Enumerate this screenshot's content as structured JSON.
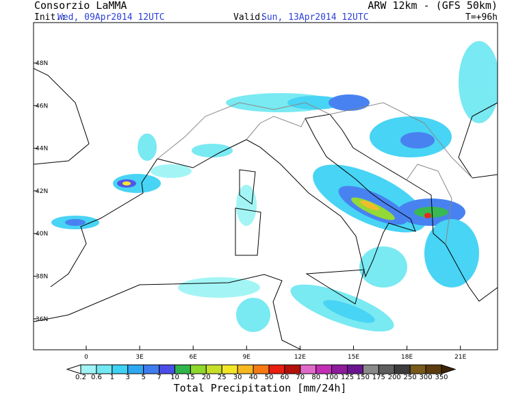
{
  "header": {
    "title": "Consorzio LaMMA",
    "model": "ARW 12km - (GFS 50km)",
    "init_label": "Init.:",
    "init_time": "Wed, 09Apr2014 12UTC",
    "valid_label": "Valid:",
    "valid_time": "Sun, 13Apr2014 12UTC",
    "lead_time": "T=+96h"
  },
  "map": {
    "lat_labels": [
      "48N",
      "46N",
      "44N",
      "42N",
      "40N",
      "38N",
      "36N"
    ],
    "lon_labels": [
      "0",
      "3E",
      "6E",
      "9E",
      "12E",
      "15E",
      "18E",
      "21E"
    ]
  },
  "colorbar": {
    "title": "Total Precipitation [mm/24h]",
    "levels": [
      0.2,
      0.6,
      1,
      3,
      5,
      7,
      10,
      15,
      20,
      25,
      30,
      40,
      50,
      60,
      70,
      80,
      100,
      125,
      150,
      175,
      200,
      250,
      300,
      350
    ],
    "colors": [
      "#ffffff",
      "#9ff5f5",
      "#72e8f2",
      "#3fd2f4",
      "#2fa8f2",
      "#3f7cf0",
      "#4b4ee6",
      "#2fb54a",
      "#8fd82c",
      "#c6e02a",
      "#f2e627",
      "#f5b820",
      "#f57a14",
      "#e81e10",
      "#b4100a",
      "#e06ac8",
      "#c22eb6",
      "#8e1a9c",
      "#6a1490",
      "#8a8a8a",
      "#5e5e5e",
      "#3c3c3c",
      "#7a5a1a",
      "#5c3c0c",
      "#3c2406"
    ]
  }
}
